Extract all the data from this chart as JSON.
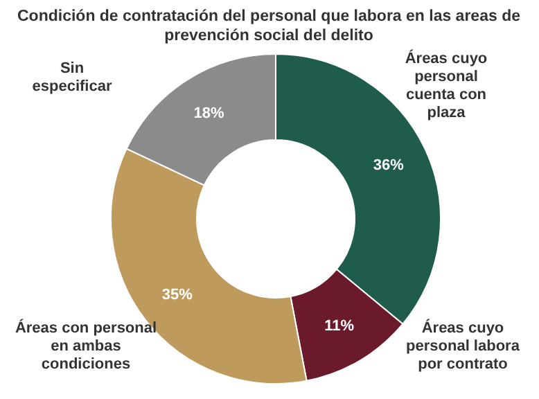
{
  "chart_data": {
    "type": "donut",
    "title": "Condición de contratación del personal que labora en las areas de prevención social del delito",
    "categories": [
      "Áreas cuyo personal cuenta con plaza",
      "Áreas cuyo personal labora por contrato",
      "Áreas con personal en ambas condiciones",
      "Sin especificar"
    ],
    "values": [
      36,
      11,
      35,
      18
    ],
    "colors": [
      "#1f5c4b",
      "#6b1a2c",
      "#bf9a5d",
      "#8b8b8b"
    ],
    "value_labels": [
      "36%",
      "11%",
      "35%",
      "18%"
    ]
  }
}
